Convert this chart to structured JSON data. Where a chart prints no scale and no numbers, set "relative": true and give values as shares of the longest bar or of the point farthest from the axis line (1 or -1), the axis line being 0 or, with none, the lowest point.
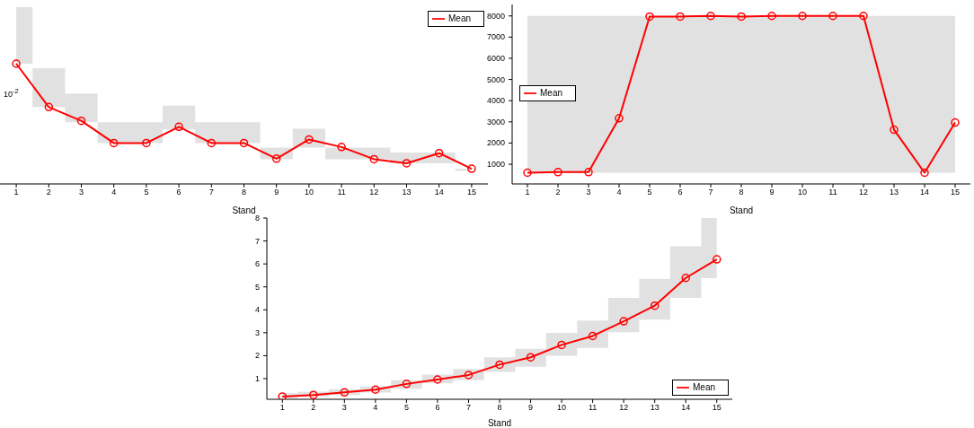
{
  "chart_data": [
    {
      "type": "line",
      "xlabel": "Stand",
      "x": [
        1,
        2,
        3,
        4,
        5,
        6,
        7,
        8,
        9,
        10,
        11,
        12,
        13,
        14,
        15
      ],
      "xlim": [
        0.5,
        15.5
      ],
      "xticks": [
        1,
        2,
        3,
        4,
        5,
        6,
        7,
        8,
        9,
        10,
        11,
        12,
        13,
        14,
        15
      ],
      "relative": true,
      "annotations": [
        "10$^{-2}$"
      ],
      "legend": "top right",
      "marker": "circle",
      "series": [
        {
          "name": "Mean",
          "color": "#ff0000",
          "values": [
            1,
            0.639,
            0.525,
            0.34,
            0.34,
            0.475,
            0.34,
            0.34,
            0.21,
            0.37,
            0.307,
            0.206,
            0.172,
            0.256,
            0.126
          ],
          "lower": [
            1,
            0.639,
            0.513,
            0.34,
            0.34,
            0.454,
            0.34,
            0.34,
            0.206,
            0.303,
            0.206,
            0.206,
            0.172,
            0.172,
            0.109
          ],
          "upper": [
            1.47,
            0.962,
            0.752,
            0.513,
            0.513,
            0.651,
            0.513,
            0.513,
            0.303,
            0.458,
            0.303,
            0.303,
            0.261,
            0.261,
            0.126
          ]
        }
      ]
    },
    {
      "type": "line",
      "xlabel": "Stand",
      "x": [
        1,
        2,
        3,
        4,
        5,
        6,
        7,
        8,
        9,
        10,
        11,
        12,
        13,
        14,
        15
      ],
      "xlim": [
        0.5,
        15.5
      ],
      "xticks": [
        1,
        2,
        3,
        4,
        5,
        6,
        7,
        8,
        9,
        10,
        11,
        12,
        13,
        14,
        15
      ],
      "ylim": [
        70,
        8540
      ],
      "yticks": [
        1000,
        2000,
        3000,
        4000,
        5000,
        6000,
        7000,
        8000
      ],
      "legend": "left",
      "marker": "circle",
      "series": [
        {
          "name": "Mean",
          "color": "#ff0000",
          "values": [
            600,
            630,
            630,
            3170,
            7970,
            7970,
            8000,
            7970,
            8000,
            8000,
            8000,
            8000,
            2630,
            600,
            2970
          ],
          "lower": [
            600,
            600,
            600,
            600,
            600,
            600,
            600,
            600,
            600,
            600,
            600,
            600,
            600,
            600,
            600
          ],
          "upper": [
            8000,
            8000,
            8000,
            8000,
            8000,
            8000,
            8000,
            8000,
            8000,
            8000,
            8000,
            8000,
            8000,
            8000,
            8000
          ]
        }
      ]
    },
    {
      "type": "line",
      "xlabel": "Stand",
      "x": [
        1,
        2,
        3,
        4,
        5,
        6,
        7,
        8,
        9,
        10,
        11,
        12,
        13,
        14,
        15
      ],
      "xlim": [
        0.5,
        15.5
      ],
      "xticks": [
        1,
        2,
        3,
        4,
        5,
        6,
        7,
        8,
        9,
        10,
        11,
        12,
        13,
        14,
        15
      ],
      "ylim": [
        0.1,
        8
      ],
      "yticks": [
        1,
        2,
        3,
        4,
        5,
        6,
        7,
        8
      ],
      "legend": "bottom right",
      "marker": "circle",
      "series": [
        {
          "name": "Mean",
          "color": "#ff0000",
          "values": [
            0.22,
            0.29,
            0.4,
            0.52,
            0.77,
            0.96,
            1.16,
            1.61,
            1.93,
            2.47,
            2.86,
            3.5,
            4.18,
            5.39,
            6.2
          ],
          "lower": [
            0.16,
            0.22,
            0.29,
            0.39,
            0.56,
            0.8,
            0.93,
            1.29,
            1.52,
            2.0,
            2.34,
            3.02,
            3.57,
            4.52,
            5.38
          ],
          "upper": [
            0.36,
            0.43,
            0.54,
            0.67,
            0.93,
            1.18,
            1.42,
            1.93,
            2.3,
            2.99,
            3.53,
            4.52,
            5.34,
            6.77,
            8.0
          ]
        }
      ]
    }
  ]
}
